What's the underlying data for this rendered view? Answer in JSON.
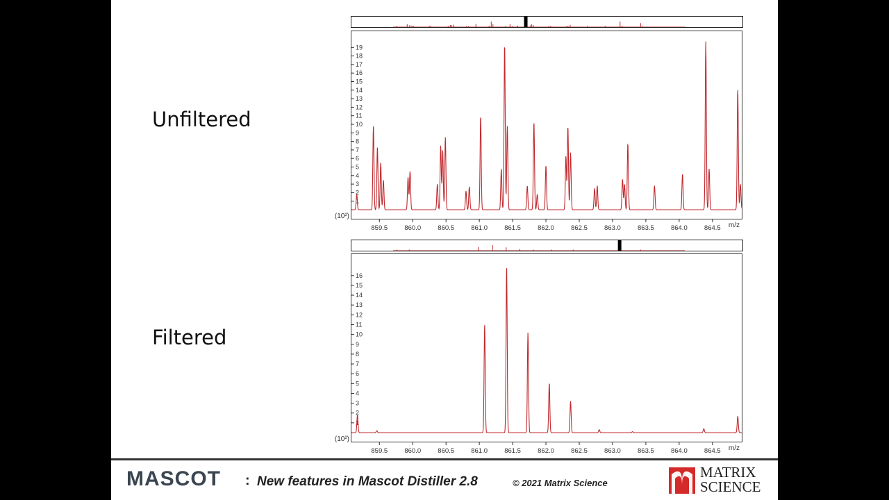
{
  "panels": {
    "top_label": "Unfiltered",
    "bottom_label": "Filtered"
  },
  "footer": {
    "brand": "MASCOT",
    "colon": ":",
    "title": "New features in Mascot Distiller 2.8",
    "copyright": "© 2021 Matrix Science",
    "logo_line1": "MATRIX",
    "logo_line2": "SCIENCE"
  },
  "colors": {
    "trace": "#c0282d",
    "axis": "#333333",
    "logo_red": "#d42a2a"
  },
  "icons": [
    "matrix-science-logo-icon"
  ],
  "chart_data": [
    {
      "type": "line",
      "panel": "Unfiltered",
      "xlabel": "m/z",
      "ylabel": "(10²)",
      "xlim": [
        859.08,
        864.94
      ],
      "ylim": [
        0,
        20
      ],
      "x_ticks": [
        "859.5",
        "860.0",
        "860.5",
        "861.0",
        "861.5",
        "862.0",
        "862.5",
        "863.0",
        "863.5",
        "864.0",
        "864.5"
      ],
      "y_ticks": [
        "1",
        "2",
        "3",
        "4",
        "5",
        "6",
        "7",
        "8",
        "9",
        "10",
        "11",
        "12",
        "13",
        "14",
        "15",
        "16",
        "17",
        "18",
        "19"
      ],
      "peaks": [
        [
          859.16,
          1.8
        ],
        [
          859.41,
          9.8
        ],
        [
          859.47,
          7.3
        ],
        [
          859.52,
          5.5
        ],
        [
          859.56,
          3.5
        ],
        [
          859.93,
          3.8
        ],
        [
          859.96,
          4.5
        ],
        [
          860.37,
          3.0
        ],
        [
          860.42,
          7.5
        ],
        [
          860.45,
          7.0
        ],
        [
          860.49,
          8.5
        ],
        [
          860.8,
          2.2
        ],
        [
          860.85,
          2.7
        ],
        [
          861.02,
          11.0
        ],
        [
          861.33,
          4.8
        ],
        [
          861.38,
          19.5
        ],
        [
          861.42,
          9.8
        ],
        [
          861.72,
          2.8
        ],
        [
          861.82,
          10.3
        ],
        [
          861.87,
          1.8
        ],
        [
          862.0,
          5.2
        ],
        [
          862.3,
          6.3
        ],
        [
          862.33,
          9.8
        ],
        [
          862.37,
          6.7
        ],
        [
          862.73,
          2.5
        ],
        [
          862.77,
          2.8
        ],
        [
          863.15,
          3.6
        ],
        [
          863.18,
          3.0
        ],
        [
          863.23,
          7.8
        ],
        [
          863.63,
          2.8
        ],
        [
          864.05,
          4.2
        ],
        [
          864.4,
          19.7
        ],
        [
          864.45,
          4.8
        ],
        [
          864.88,
          14.2
        ],
        [
          864.92,
          3.0
        ]
      ],
      "overview_marker_percent": 44.5
    },
    {
      "type": "line",
      "panel": "Filtered",
      "xlabel": "m/z",
      "ylabel": "(10²)",
      "xlim": [
        859.08,
        864.94
      ],
      "ylim": [
        0,
        17.4
      ],
      "x_ticks": [
        "859.5",
        "860.0",
        "860.5",
        "861.0",
        "861.5",
        "862.0",
        "862.5",
        "863.0",
        "863.5",
        "864.0",
        "864.5"
      ],
      "y_ticks": [
        "1",
        "2",
        "3",
        "4",
        "5",
        "6",
        "7",
        "8",
        "9",
        "10",
        "11",
        "12",
        "13",
        "14",
        "15",
        "16"
      ],
      "peaks": [
        [
          859.17,
          1.8
        ],
        [
          859.46,
          0.2
        ],
        [
          861.08,
          11.0
        ],
        [
          861.41,
          17.0
        ],
        [
          861.73,
          10.2
        ],
        [
          862.05,
          5.1
        ],
        [
          862.37,
          3.2
        ],
        [
          862.8,
          0.3
        ],
        [
          863.3,
          0.1
        ],
        [
          864.37,
          0.4
        ],
        [
          864.88,
          1.7
        ]
      ],
      "overview_marker_percent": 68.5
    }
  ]
}
